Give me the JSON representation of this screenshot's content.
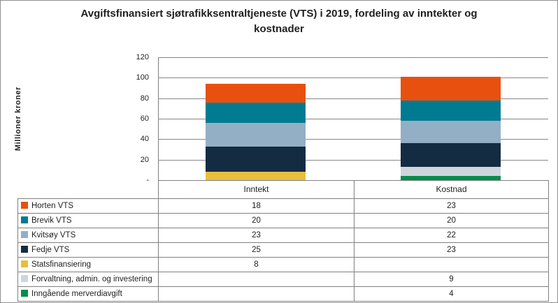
{
  "chart_data": {
    "type": "bar",
    "stacked": true,
    "title": "Avgiftsfinansiert sjøtrafikksentraltjeneste (VTS) i 2019, fordeling av inntekter og kostnader",
    "ylabel": "Millioner kroner",
    "ylim": [
      0,
      120
    ],
    "ytick_values": [
      120,
      100,
      80,
      60,
      40,
      20,
      0
    ],
    "ytick_labels": [
      "120",
      "100",
      "80",
      "60",
      "40",
      "20",
      "-"
    ],
    "grid": "horizontal",
    "legend_position": "data-table-left",
    "stack_order": "last-series-at-bottom",
    "categories": [
      "Inntekt",
      "Kostnad"
    ],
    "series": [
      {
        "name": "Horten VTS",
        "color": "#E8500F",
        "values": [
          18,
          23
        ]
      },
      {
        "name": "Brevik VTS",
        "color": "#007B91",
        "values": [
          20,
          20
        ]
      },
      {
        "name": "Kvitsøy VTS",
        "color": "#93AFC5",
        "values": [
          23,
          22
        ]
      },
      {
        "name": "Fedje VTS",
        "color": "#132C41",
        "values": [
          25,
          23
        ]
      },
      {
        "name": "Statsfinansiering",
        "color": "#E8BF3C",
        "values": [
          8,
          null
        ]
      },
      {
        "name": "Forvaltning, admin. og investering",
        "color": "#D0D5DC",
        "values": [
          null,
          9
        ]
      },
      {
        "name": "Inngående merverdiavgift",
        "color": "#078C4B",
        "values": [
          null,
          4
        ]
      }
    ],
    "line_color": "#808080",
    "gridline_color": "#878787"
  }
}
